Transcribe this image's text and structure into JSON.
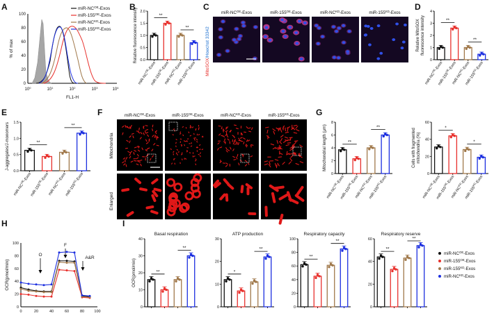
{
  "colors": {
    "nc_oe": "#111111",
    "m155_oe": "#e8302c",
    "nc_kd": "#a0784a",
    "m155_kd": "#1c2fe0",
    "hist_gray": "#a6a6a6"
  },
  "panels": {
    "A": {
      "letter": "A",
      "legend": [
        "miR-NC",
        "miR-155",
        "miR-NC",
        "miR-155"
      ],
      "legend_sup": [
        "OE",
        "OE",
        "KD",
        "KD"
      ],
      "legend_suffix": "-Exos",
      "ylabel": "% of max",
      "xlabel": "FL1-H",
      "yticks": [
        "0",
        "20",
        "40",
        "60",
        "80",
        "100"
      ],
      "xticks": [
        "10",
        "10",
        "10",
        "10",
        "10"
      ],
      "xtick_exps": [
        "0",
        "1",
        "2",
        "3",
        "4"
      ]
    },
    "B": {
      "letter": "B",
      "ylabel": "Relative fluorescence intensity",
      "yticks": [
        "0.0",
        "0.5",
        "1.0",
        "1.5",
        "2.0"
      ],
      "sig": [
        "**",
        "**"
      ]
    },
    "C": {
      "letter": "C",
      "side_label_a": "MitoSOX",
      "side_label_b": "Hoechst 33342",
      "images": [
        {
          "t": "miR-NC",
          "s": "OE",
          "u": "-Exos"
        },
        {
          "t": "miR-155",
          "s": "OE",
          "u": "-Exos"
        },
        {
          "t": "miR-NC",
          "s": "KD",
          "u": "-Exos"
        },
        {
          "t": "miR-155",
          "s": "KD",
          "u": "-Exos"
        }
      ]
    },
    "D": {
      "letter": "D",
      "ylabel": [
        "Relative MitoSOX",
        "fluorescence intensity"
      ],
      "yticks": [
        "0",
        "1",
        "2",
        "3",
        "4"
      ],
      "sig": [
        "**",
        "**"
      ]
    },
    "E": {
      "letter": "E",
      "ylabel": "J-aggregates/J-monomers",
      "yticks": [
        "0.0",
        "0.5",
        "1.0",
        "1.5"
      ],
      "sig": [
        "**",
        "**"
      ]
    },
    "F": {
      "letter": "F",
      "row_labels": [
        "Mitochondria",
        "Enlarged"
      ],
      "images": [
        {
          "t": "miR-NC",
          "s": "OE",
          "u": "-Exos"
        },
        {
          "t": "miR-155",
          "s": "OE",
          "u": "-Exos"
        },
        {
          "t": "miR-NC",
          "s": "KD",
          "u": "-Exos"
        },
        {
          "t": "miR-155",
          "s": "KD",
          "u": "-Exos"
        }
      ]
    },
    "G": {
      "letter": "G",
      "left_ylabel": "Mitochondrial length (μm)",
      "left_yticks": [
        "0",
        "2",
        "4",
        "6",
        "8"
      ],
      "left_sig": [
        "**",
        "**"
      ],
      "right_ylabel": [
        "Cells with fragmented",
        "mitochondria (%)"
      ],
      "right_yticks": [
        "0",
        "20",
        "40",
        "60"
      ],
      "right_sig": [
        "*",
        "*"
      ]
    },
    "H": {
      "letter": "H",
      "ylabel": "OCR(pmol/min)",
      "yticks": [
        "0",
        "20",
        "40",
        "60",
        "80",
        "100"
      ],
      "xticks": [
        "0",
        "20",
        "40",
        "60",
        "80",
        "100"
      ],
      "arrows": [
        "O",
        "F",
        "A&R"
      ]
    },
    "I": {
      "letter": "I",
      "ylabel": "OCR(pmol/min)",
      "titles": [
        "Basal respiration",
        "ATP production",
        "Respiratory capacity",
        "Respiratory reserve"
      ],
      "yticks": [
        [
          "0",
          "10",
          "20",
          "30",
          "40"
        ],
        [
          "0",
          "10",
          "20",
          "30"
        ],
        [
          "0",
          "20",
          "40",
          "60",
          "80",
          "100"
        ],
        [
          "0",
          "20",
          "40",
          "60"
        ]
      ],
      "sig": [
        [
          "**",
          "**"
        ],
        [
          "*",
          "**"
        ],
        [
          "**",
          "**"
        ],
        [
          "**",
          "**"
        ]
      ],
      "legend": [
        {
          "t": "miR-NC",
          "s": "OE",
          "u": "-Exos"
        },
        {
          "t": "miR-155",
          "s": "OE",
          "u": "-Exos"
        },
        {
          "t": "miR-155",
          "s": "KD",
          "u": "-Exos"
        },
        {
          "t": "miR-NC",
          "s": "KD",
          "u": "-Exos"
        }
      ]
    }
  },
  "x_group_labels": [
    {
      "t": "miR-NC",
      "s": "OE",
      "u": "-Exos"
    },
    {
      "t": "miR-155",
      "s": "OE",
      "u": "-Exos"
    },
    {
      "t": "miR-NC",
      "s": "KD",
      "u": "-Exos"
    },
    {
      "t": "miR-155",
      "s": "KD",
      "u": "-Exos"
    }
  ],
  "chart_data": [
    {
      "panel": "B",
      "type": "bar",
      "categories": [
        "miR-NC OE-Exos",
        "miR-155 OE-Exos",
        "miR-NC KD-Exos",
        "miR-155 KD-Exos"
      ],
      "values": [
        1.0,
        1.5,
        1.0,
        0.7
      ],
      "ylim": [
        0,
        2.0
      ]
    },
    {
      "panel": "D",
      "type": "bar",
      "categories": [
        "miR-NC OE-Exos",
        "miR-155 OE-Exos",
        "miR-NC KD-Exos",
        "miR-155 KD-Exos"
      ],
      "values": [
        1.0,
        2.6,
        1.0,
        0.45
      ],
      "ylim": [
        0,
        4
      ]
    },
    {
      "panel": "E",
      "type": "bar",
      "categories": [
        "miR-NC OE-Exos",
        "miR-155 OE-Exos",
        "miR-NC KD-Exos",
        "miR-155 KD-Exos"
      ],
      "values": [
        0.63,
        0.44,
        0.57,
        1.16
      ],
      "ylim": [
        0,
        1.5
      ]
    },
    {
      "panel": "G-left",
      "type": "bar",
      "categories": [
        "miR-NC OE-Exos",
        "miR-155 OE-Exos",
        "miR-NC KD-Exos",
        "miR-155 KD-Exos"
      ],
      "values": [
        3.7,
        2.3,
        4.0,
        6.0
      ],
      "ylim": [
        0,
        8
      ]
    },
    {
      "panel": "G-right",
      "type": "bar",
      "categories": [
        "miR-NC OE-Exos",
        "miR-155 OE-Exos",
        "miR-NC KD-Exos",
        "miR-155 KD-Exos"
      ],
      "values": [
        31,
        44,
        28,
        19
      ],
      "ylim": [
        0,
        60
      ]
    },
    {
      "panel": "H",
      "type": "line",
      "xlim": [
        0,
        100
      ],
      "ylim": [
        0,
        100
      ],
      "x": [
        0,
        10,
        20,
        30,
        40,
        50,
        60,
        70,
        80,
        90
      ],
      "series": [
        {
          "values": [
            30,
            27,
            25,
            24,
            24,
            72,
            72,
            71,
            17,
            16
          ]
        },
        {
          "values": [
            20,
            19,
            17,
            16,
            16,
            58,
            57,
            56,
            15,
            14
          ]
        },
        {
          "values": [
            28,
            25,
            24,
            23,
            23,
            70,
            69,
            69,
            16,
            15
          ]
        },
        {
          "values": [
            38,
            36,
            35,
            34,
            35,
            85,
            86,
            85,
            18,
            17
          ]
        }
      ]
    },
    {
      "panel": "I-1",
      "type": "bar",
      "title": "Basal respiration",
      "values": [
        16,
        10,
        16,
        30
      ],
      "ylim": [
        0,
        40
      ]
    },
    {
      "panel": "I-2",
      "type": "bar",
      "title": "ATP production",
      "values": [
        12,
        7,
        11,
        22
      ],
      "ylim": [
        0,
        30
      ]
    },
    {
      "panel": "I-3",
      "type": "bar",
      "title": "Respiratory capacity",
      "values": [
        62,
        45,
        61,
        85
      ],
      "ylim": [
        0,
        100
      ]
    },
    {
      "panel": "I-4",
      "type": "bar",
      "title": "Respiratory reserve",
      "values": [
        44,
        33,
        43,
        54
      ],
      "ylim": [
        0,
        60
      ]
    }
  ]
}
